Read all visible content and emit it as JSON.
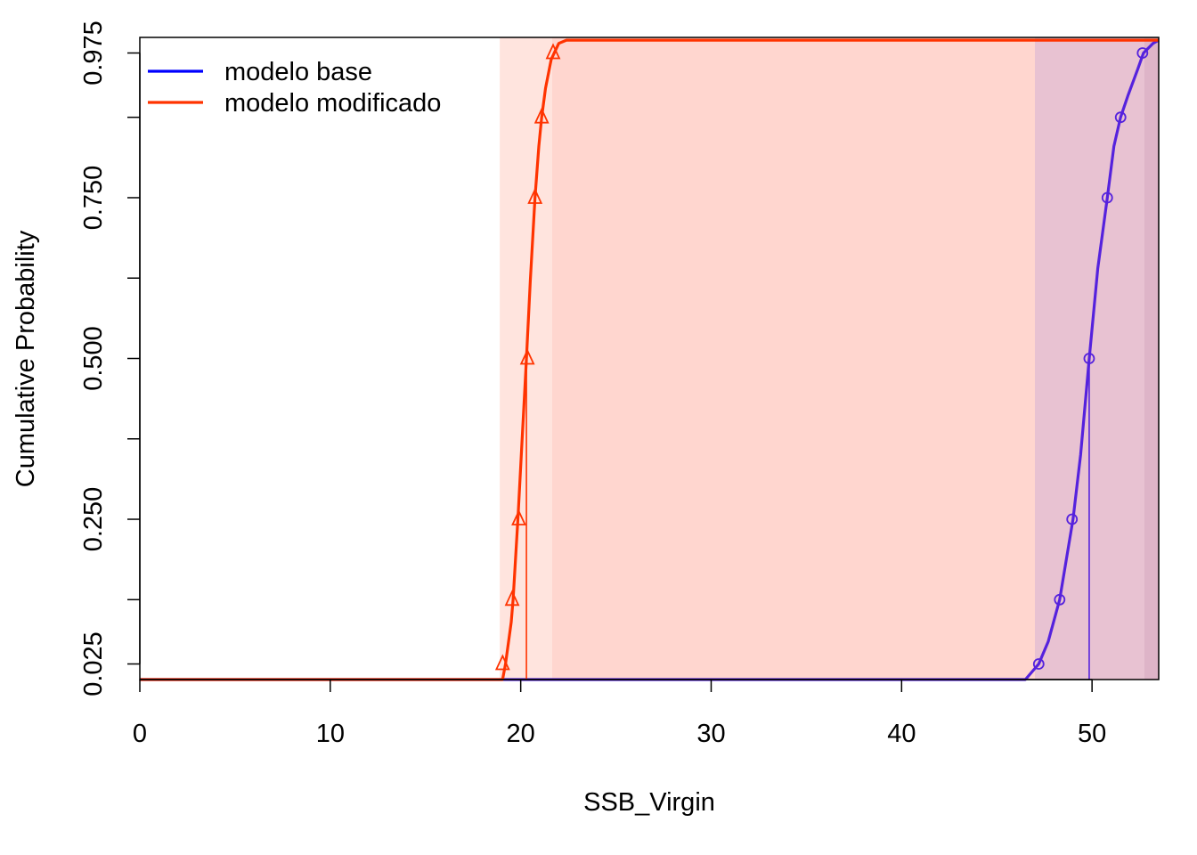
{
  "chart_data": {
    "type": "line",
    "title": "",
    "xlabel": "SSB_Virgin",
    "ylabel": "Cumulative Probability",
    "xlim": [
      0,
      53.5
    ],
    "ylim": [
      -0.025,
      0.975
    ],
    "x_ticks": [
      0,
      10,
      20,
      30,
      40,
      50
    ],
    "y_ticks": [
      0.025,
      0.25,
      0.5,
      0.75,
      0.975
    ],
    "y_minor_ticks": [
      0.125,
      0.375,
      0.625,
      0.875
    ],
    "legend": {
      "position": "top-left"
    },
    "series": [
      {
        "name": "modelo base",
        "legend_color": "#0000ff",
        "line_color": "#5522dd",
        "marker": "circle",
        "median": 49.85,
        "cdf": [
          [
            0,
            -0.025
          ],
          [
            45,
            -0.025
          ],
          [
            46,
            -0.02
          ],
          [
            46.5,
            -0.01
          ],
          [
            47.2,
            0.025
          ],
          [
            47.7,
            0.06
          ],
          [
            48.3,
            0.125
          ],
          [
            49,
            0.25
          ],
          [
            49.4,
            0.35
          ],
          [
            49.85,
            0.5
          ],
          [
            50.3,
            0.64
          ],
          [
            50.8,
            0.75
          ],
          [
            51.15,
            0.83
          ],
          [
            51.5,
            0.875
          ],
          [
            51.9,
            0.91
          ],
          [
            52.4,
            0.95
          ],
          [
            52.7,
            0.975
          ],
          [
            53.2,
            0.99
          ],
          [
            53.5,
            0.995
          ]
        ],
        "quantile_points": [
          [
            47.2,
            0.025
          ],
          [
            48.3,
            0.125
          ],
          [
            48.95,
            0.25
          ],
          [
            49.85,
            0.5
          ],
          [
            50.8,
            0.75
          ],
          [
            51.5,
            0.875
          ],
          [
            52.65,
            0.975
          ]
        ],
        "shade_start": 47.0,
        "shade_dark_start": 52.75,
        "shade_color": "#e8c2d2",
        "shade_dark_color": "#deb4c8"
      },
      {
        "name": "modelo modificado",
        "legend_color": "#ff3300",
        "line_color": "#ff3300",
        "marker": "triangle",
        "median": 20.3,
        "cdf": [
          [
            0,
            -0.025
          ],
          [
            18.3,
            -0.025
          ],
          [
            18.8,
            -0.015
          ],
          [
            19.05,
            0.0
          ],
          [
            19.2,
            0.025
          ],
          [
            19.5,
            0.09
          ],
          [
            19.6,
            0.125
          ],
          [
            19.85,
            0.25
          ],
          [
            20.05,
            0.36
          ],
          [
            20.3,
            0.5
          ],
          [
            20.5,
            0.62
          ],
          [
            20.75,
            0.75
          ],
          [
            20.95,
            0.83
          ],
          [
            21.1,
            0.875
          ],
          [
            21.3,
            0.92
          ],
          [
            21.6,
            0.965
          ],
          [
            22.0,
            0.99
          ],
          [
            22.4,
            0.995
          ],
          [
            53.5,
            0.995
          ]
        ],
        "quantile_points": [
          [
            19.05,
            0.025
          ],
          [
            19.55,
            0.125
          ],
          [
            19.9,
            0.25
          ],
          [
            20.35,
            0.5
          ],
          [
            20.75,
            0.75
          ],
          [
            21.1,
            0.875
          ],
          [
            21.7,
            0.975
          ]
        ],
        "shade_start": 18.9,
        "shade_dark_start": 21.65,
        "shade_color": "#ffe4de",
        "shade_dark_color": "#ffd6cf"
      }
    ]
  }
}
